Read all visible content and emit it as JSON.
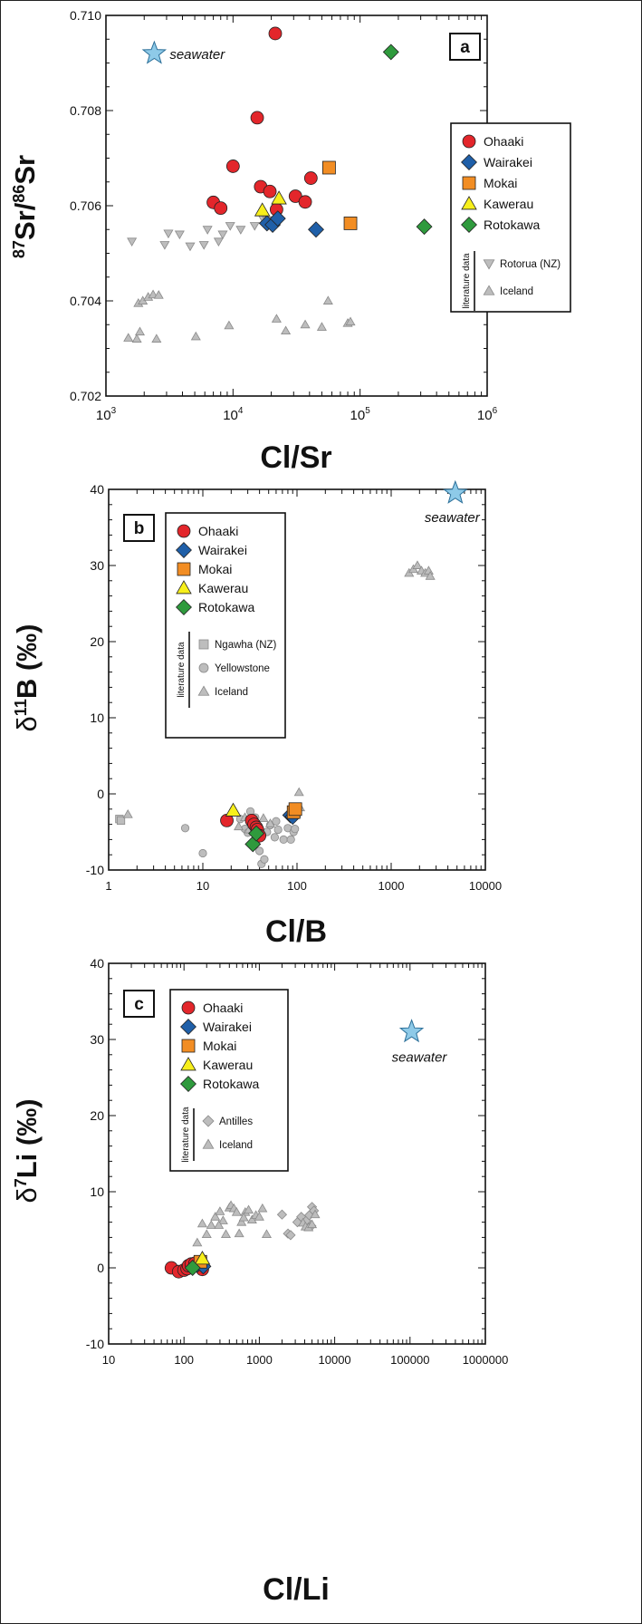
{
  "colors": {
    "Ohaaki": "#e3262b",
    "Wairakei": "#1f5fa8",
    "Mokai": "#f28d23",
    "Kawerau": "#f7ef1b",
    "Rotokawa": "#2f9a3d",
    "literature": "#bdbdbd",
    "seawater": "#8ecae8"
  },
  "chart_data": [
    {
      "panel": "a",
      "type": "scatter",
      "xscale": "log",
      "xlim": [
        1000,
        1000000
      ],
      "ylim": [
        0.702,
        0.71
      ],
      "xlabel": "Cl/Sr",
      "ylabel_html": "87Sr/86Sr",
      "ylabel_parts": [
        "87",
        "Sr/",
        "86",
        "Sr"
      ],
      "x_ticks": [
        {
          "v": 1000,
          "base": "10",
          "exp": "3"
        },
        {
          "v": 10000,
          "base": "10",
          "exp": "4"
        },
        {
          "v": 100000,
          "base": "10",
          "exp": "5"
        },
        {
          "v": 1000000,
          "base": "10",
          "exp": "6"
        }
      ],
      "y_ticks": [
        {
          "v": 0.702,
          "label": "0.702"
        },
        {
          "v": 0.704,
          "label": "0.704"
        },
        {
          "v": 0.706,
          "label": "0.706"
        },
        {
          "v": 0.708,
          "label": "0.708"
        },
        {
          "v": 0.71,
          "label": "0.710"
        }
      ],
      "legend_main": [
        "Ohaaki",
        "Wairakei",
        "Mokai",
        "Kawerau",
        "Rotokawa"
      ],
      "legend_lit_title": "literature data",
      "legend_lit": [
        {
          "name": "Rotorua (NZ)",
          "shape": "tri-down"
        },
        {
          "name": "Iceland",
          "shape": "tri-up"
        }
      ],
      "seawater": {
        "label": "seawater",
        "x": 2400,
        "y": 0.7092
      },
      "series": [
        {
          "name": "Ohaaki",
          "shape": "circle",
          "points": [
            [
              21500,
              0.70962
            ],
            [
              15500,
              0.70785
            ],
            [
              10000,
              0.70683
            ],
            [
              7000,
              0.70607
            ],
            [
              8000,
              0.70595
            ],
            [
              16500,
              0.7064
            ],
            [
              19500,
              0.7063
            ],
            [
              22000,
              0.70592
            ],
            [
              31000,
              0.7062
            ],
            [
              37000,
              0.70608
            ],
            [
              41000,
              0.70658
            ]
          ]
        },
        {
          "name": "Wairakei",
          "shape": "diamond",
          "points": [
            [
              18500,
              0.70563
            ],
            [
              20500,
              0.7056
            ],
            [
              22500,
              0.70573
            ],
            [
              45000,
              0.7055
            ]
          ]
        },
        {
          "name": "Mokai",
          "shape": "square",
          "points": [
            [
              57000,
              0.7068
            ],
            [
              84000,
              0.70563
            ]
          ]
        },
        {
          "name": "Kawerau",
          "shape": "tri-up",
          "points": [
            [
              17000,
              0.7059
            ],
            [
              23000,
              0.70615
            ]
          ]
        },
        {
          "name": "Rotokawa",
          "shape": "diamond",
          "points": [
            [
              175000,
              0.70923
            ],
            [
              320000,
              0.70556
            ]
          ]
        },
        {
          "name": "Rotorua (NZ)",
          "shape": "tri-down",
          "points": [
            [
              1600,
              0.70525
            ],
            [
              2900,
              0.70518
            ],
            [
              3100,
              0.70542
            ],
            [
              3800,
              0.7054
            ],
            [
              4600,
              0.70515
            ],
            [
              5900,
              0.70518
            ],
            [
              6300,
              0.7055
            ],
            [
              7700,
              0.70525
            ],
            [
              8300,
              0.7054
            ],
            [
              9500,
              0.70558
            ],
            [
              11500,
              0.7055
            ],
            [
              14800,
              0.70558
            ],
            [
              17000,
              0.70575
            ],
            [
              18500,
              0.7057
            ]
          ]
        },
        {
          "name": "Iceland",
          "shape": "tri-up",
          "points": [
            [
              1800,
              0.70395
            ],
            [
              1950,
              0.704
            ],
            [
              2150,
              0.70408
            ],
            [
              2350,
              0.70413
            ],
            [
              2600,
              0.70412
            ],
            [
              1500,
              0.70322
            ],
            [
              1750,
              0.7032
            ],
            [
              1850,
              0.70335
            ],
            [
              2500,
              0.7032
            ],
            [
              5100,
              0.70325
            ],
            [
              9300,
              0.70348
            ],
            [
              22000,
              0.70362
            ],
            [
              26000,
              0.70337
            ],
            [
              37000,
              0.7035
            ],
            [
              50000,
              0.70345
            ],
            [
              56000,
              0.704
            ],
            [
              80000,
              0.70353
            ],
            [
              84000,
              0.70356
            ]
          ]
        }
      ]
    },
    {
      "panel": "b",
      "type": "scatter",
      "xscale": "log",
      "xlim": [
        1,
        10000
      ],
      "ylim": [
        -10,
        40
      ],
      "xlabel": "Cl/B",
      "ylabel_parts": [
        "δ",
        "11",
        "B (‰)"
      ],
      "x_ticks": [
        {
          "v": 1,
          "label": "1"
        },
        {
          "v": 10,
          "label": "10"
        },
        {
          "v": 100,
          "label": "100"
        },
        {
          "v": 1000,
          "label": "1000"
        },
        {
          "v": 10000,
          "label": "10000"
        }
      ],
      "y_ticks": [
        {
          "v": -10,
          "label": "-10"
        },
        {
          "v": 0,
          "label": "0"
        },
        {
          "v": 10,
          "label": "10"
        },
        {
          "v": 20,
          "label": "20"
        },
        {
          "v": 30,
          "label": "30"
        },
        {
          "v": 40,
          "label": "40"
        }
      ],
      "legend_main": [
        "Ohaaki",
        "Wairakei",
        "Mokai",
        "Kawerau",
        "Rotokawa"
      ],
      "legend_lit_title": "literature data",
      "legend_lit": [
        {
          "name": "Ngawha (NZ)",
          "shape": "square"
        },
        {
          "name": "Yellowstone",
          "shape": "circle"
        },
        {
          "name": "Iceland",
          "shape": "tri-up"
        }
      ],
      "seawater": {
        "label": "seawater",
        "x": 4800,
        "y": 39.5
      },
      "series": [
        {
          "name": "Ngawha (NZ)",
          "shape": "square",
          "points": [
            [
              1.3,
              -3.3
            ],
            [
              1.35,
              -3.5
            ]
          ]
        },
        {
          "name": "Yellowstone",
          "shape": "circle",
          "points": [
            [
              6.5,
              -4.5
            ],
            [
              10,
              -7.8
            ],
            [
              25,
              -3.3
            ],
            [
              28,
              -4.6
            ],
            [
              30,
              -5.1
            ],
            [
              32,
              -2.3
            ],
            [
              34,
              -4.0
            ],
            [
              36,
              -4.8
            ],
            [
              38,
              -5.8
            ],
            [
              40,
              -7.5
            ],
            [
              42,
              -9.2
            ],
            [
              45,
              -8.6
            ],
            [
              48,
              -5.0
            ],
            [
              52,
              -4.1
            ],
            [
              58,
              -5.7
            ],
            [
              63,
              -4.7
            ],
            [
              72,
              -6.0
            ],
            [
              80,
              -4.5
            ],
            [
              86,
              -6.0
            ],
            [
              92,
              -5.0
            ],
            [
              95,
              -4.6
            ],
            [
              36,
              -3.1
            ],
            [
              60,
              -3.6
            ]
          ]
        },
        {
          "name": "Iceland",
          "shape": "tri-up",
          "points": [
            [
              1.6,
              -2.7
            ],
            [
              24,
              -4.3
            ],
            [
              28,
              -3.1
            ],
            [
              31,
              -4.7
            ],
            [
              44,
              -3.2
            ],
            [
              52,
              -3.9
            ],
            [
              96,
              -1.8
            ],
            [
              105,
              0.2
            ],
            [
              108,
              -1.8
            ],
            [
              1550,
              29.0
            ],
            [
              1720,
              29.5
            ],
            [
              1900,
              30.0
            ],
            [
              2100,
              29.3
            ],
            [
              2300,
              29.0
            ],
            [
              2500,
              29.3
            ],
            [
              2600,
              28.6
            ]
          ]
        },
        {
          "name": "Ohaaki",
          "shape": "circle",
          "points": [
            [
              18,
              -3.5
            ],
            [
              33,
              -3.5
            ],
            [
              35,
              -4.0
            ],
            [
              37,
              -4.4
            ],
            [
              38,
              -4.7
            ],
            [
              40,
              -5.5
            ]
          ]
        },
        {
          "name": "Wairakei",
          "shape": "diamond",
          "points": [
            [
              85,
              -2.8
            ],
            [
              90,
              -3.0
            ]
          ]
        },
        {
          "name": "Mokai",
          "shape": "square",
          "points": [
            [
              92,
              -2.4
            ],
            [
              96,
              -2.0
            ]
          ]
        },
        {
          "name": "Kawerau",
          "shape": "tri-up",
          "points": [
            [
              21,
              -2.2
            ]
          ]
        },
        {
          "name": "Rotokawa",
          "shape": "diamond",
          "points": [
            [
              34,
              -6.6
            ],
            [
              37,
              -5.2
            ]
          ]
        }
      ]
    },
    {
      "panel": "c",
      "type": "scatter",
      "xscale": "log",
      "xlim": [
        10,
        1000000
      ],
      "ylim": [
        -10,
        40
      ],
      "xlabel": "Cl/Li",
      "ylabel_parts": [
        "δ",
        "7",
        "Li (‰)"
      ],
      "x_ticks": [
        {
          "v": 10,
          "label": "10"
        },
        {
          "v": 100,
          "label": "100"
        },
        {
          "v": 1000,
          "label": "1000"
        },
        {
          "v": 10000,
          "label": "10000"
        },
        {
          "v": 100000,
          "label": "100000"
        },
        {
          "v": 1000000,
          "label": "1000000"
        }
      ],
      "y_ticks": [
        {
          "v": -10,
          "label": "-10"
        },
        {
          "v": 0,
          "label": "0"
        },
        {
          "v": 10,
          "label": "10"
        },
        {
          "v": 20,
          "label": "20"
        },
        {
          "v": 30,
          "label": "30"
        },
        {
          "v": 40,
          "label": "40"
        }
      ],
      "legend_main": [
        "Ohaaki",
        "Wairakei",
        "Mokai",
        "Kawerau",
        "Rotokawa"
      ],
      "legend_lit_title": "literature data",
      "legend_lit": [
        {
          "name": "Antilles",
          "shape": "diamond"
        },
        {
          "name": "Iceland",
          "shape": "tri-up"
        }
      ],
      "seawater": {
        "label": "seawater",
        "x": 105000,
        "y": 31
      },
      "series": [
        {
          "name": "Antilles",
          "shape": "diamond",
          "points": [
            [
              2000,
              7.0
            ],
            [
              2400,
              4.5
            ],
            [
              2600,
              4.3
            ],
            [
              3200,
              6.0
            ],
            [
              3600,
              6.7
            ],
            [
              4200,
              6.2
            ],
            [
              4600,
              6.9
            ],
            [
              5000,
              8.0
            ],
            [
              5300,
              7.5
            ],
            [
              4900,
              5.5
            ]
          ]
        },
        {
          "name": "Iceland",
          "shape": "tri-up",
          "points": [
            [
              150,
              3.3
            ],
            [
              175,
              5.8
            ],
            [
              200,
              4.4
            ],
            [
              230,
              5.6
            ],
            [
              260,
              6.7
            ],
            [
              300,
              7.4
            ],
            [
              330,
              6.2
            ],
            [
              360,
              4.4
            ],
            [
              400,
              7.9
            ],
            [
              420,
              8.2
            ],
            [
              460,
              7.8
            ],
            [
              500,
              7.3
            ],
            [
              540,
              4.5
            ],
            [
              580,
              6.0
            ],
            [
              650,
              7.3
            ],
            [
              720,
              7.6
            ],
            [
              800,
              6.3
            ],
            [
              900,
              6.9
            ],
            [
              1000,
              6.7
            ],
            [
              1100,
              7.8
            ],
            [
              1250,
              4.4
            ],
            [
              3800,
              5.9
            ],
            [
              4100,
              5.4
            ],
            [
              4500,
              5.3
            ],
            [
              5500,
              7.0
            ],
            [
              5000,
              5.7
            ],
            [
              290,
              5.6
            ],
            [
              620,
              6.6
            ]
          ]
        },
        {
          "name": "Ohaaki",
          "shape": "circle",
          "points": [
            [
              68,
              0.0
            ],
            [
              85,
              -0.5
            ],
            [
              100,
              -0.3
            ],
            [
              110,
              -0.1
            ],
            [
              115,
              0.3
            ],
            [
              125,
              0.5
            ],
            [
              140,
              0.6
            ],
            [
              160,
              0.4
            ],
            [
              175,
              -0.2
            ]
          ]
        },
        {
          "name": "Wairakei",
          "shape": "diamond",
          "points": [
            [
              150,
              0.4
            ],
            [
              180,
              0.2
            ]
          ]
        },
        {
          "name": "Mokai",
          "shape": "square",
          "points": [
            [
              165,
              0.8
            ]
          ]
        },
        {
          "name": "Kawerau",
          "shape": "tri-up",
          "points": [
            [
              175,
              1.2
            ]
          ]
        },
        {
          "name": "Rotokawa",
          "shape": "diamond",
          "points": [
            [
              130,
              0.0
            ]
          ]
        }
      ]
    }
  ]
}
